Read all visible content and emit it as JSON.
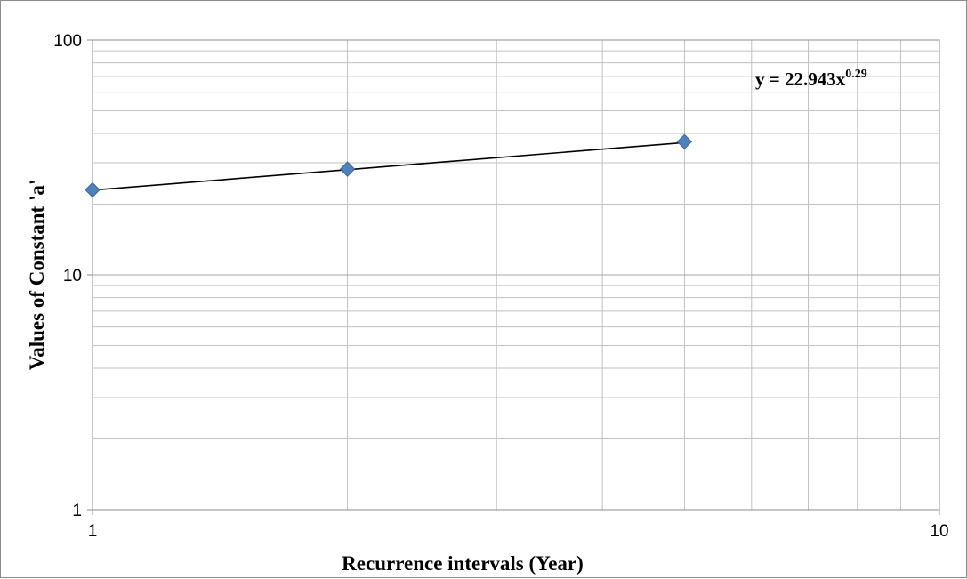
{
  "chart_data": {
    "type": "scatter",
    "x_scale": "log",
    "y_scale": "log",
    "xlim": [
      1,
      10
    ],
    "ylim": [
      1,
      100
    ],
    "xlabel": "Recurrence intervals (Year)",
    "ylabel": "Values of Constant 'a'",
    "x_ticks": [
      "1",
      "10"
    ],
    "y_ticks": [
      "1",
      "10",
      "100"
    ],
    "series": [
      {
        "x": [
          1,
          2,
          5
        ],
        "y": [
          23.0,
          28.2,
          36.9
        ]
      }
    ],
    "trendline": {
      "type": "power",
      "coefficient": 22.943,
      "exponent": 0.29,
      "label_text": "y = 22.943x",
      "label_exponent": "0.29"
    },
    "grid": {
      "major": true,
      "minor": true
    },
    "legend": "none",
    "marker": "diamond",
    "marker_color": "#4f81bd",
    "marker_edge_color": "#3a6596",
    "trendline_color": "#000000",
    "grid_color": "#c0c0c0"
  }
}
